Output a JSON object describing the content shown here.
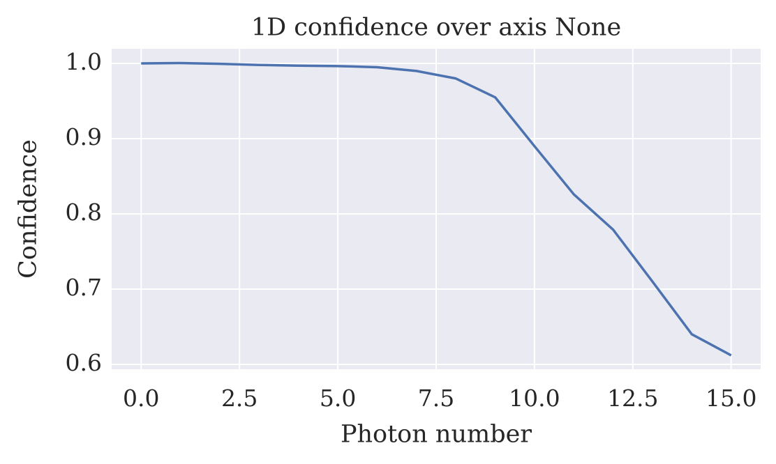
{
  "chart_data": {
    "type": "line",
    "title": "1D confidence over axis None",
    "x_label": "Photon number",
    "y_label": "Confidence",
    "x": [
      0,
      1,
      2,
      3,
      4,
      5,
      6,
      7,
      8,
      9,
      10,
      11,
      12,
      13,
      14,
      15
    ],
    "series": [
      {
        "name": "Confidence",
        "color": "#4c72b0",
        "values": [
          1.0,
          1.0005,
          0.9995,
          0.998,
          0.997,
          0.9965,
          0.995,
          0.99,
          0.98,
          0.955,
          0.89,
          0.826,
          0.779,
          0.71,
          0.64,
          0.612
        ]
      }
    ],
    "xlim": [
      -0.75,
      15.75
    ],
    "ylim": [
      0.5935,
      1.0195
    ],
    "xticks": [
      {
        "value": 0,
        "label": "0.0"
      },
      2.5,
      {
        "value": 5,
        "label": "5.0"
      },
      7.5,
      {
        "value": 10,
        "label": "10.0"
      },
      12.5,
      {
        "value": 15,
        "label": "15.0"
      }
    ],
    "yticks": [
      0.6,
      0.7,
      0.8,
      0.9,
      {
        "value": 1,
        "label": "1.0"
      }
    ],
    "grid": true,
    "background": "#eaeaf2"
  }
}
